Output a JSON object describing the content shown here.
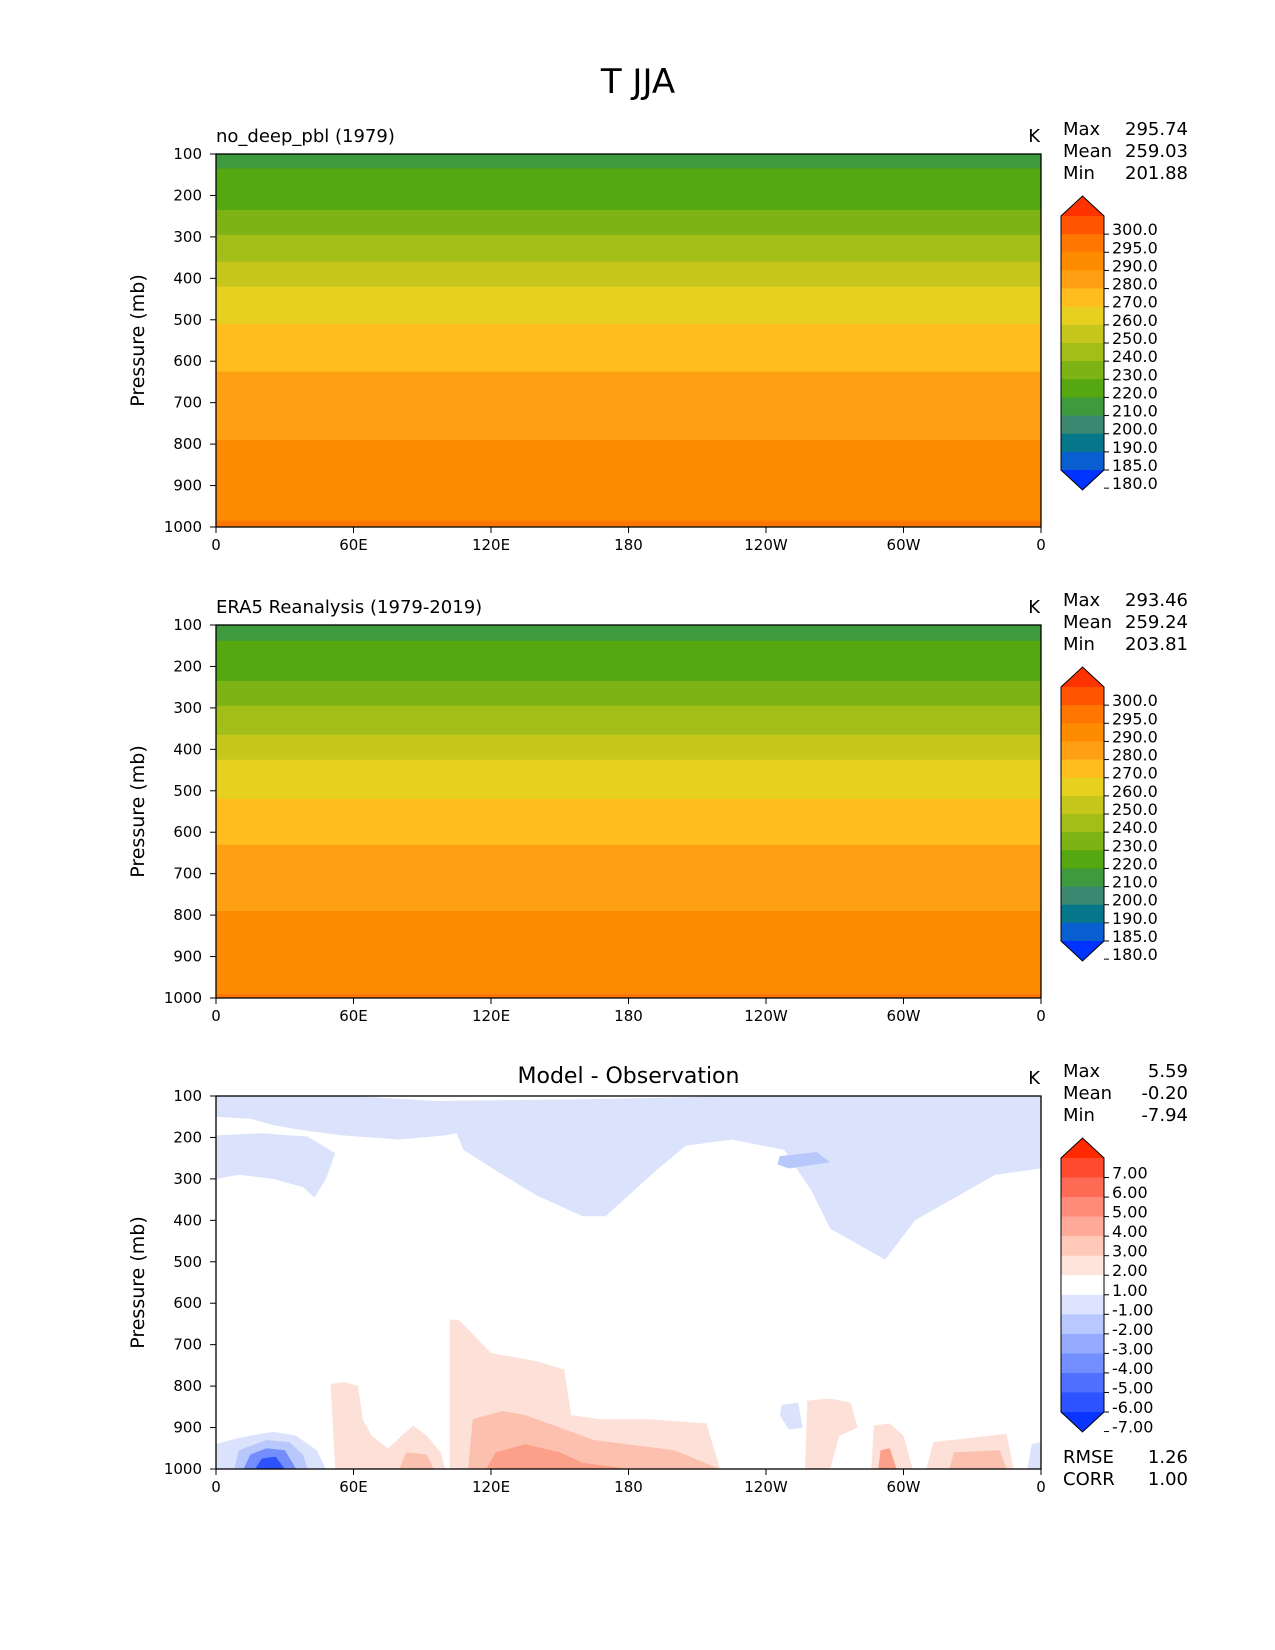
{
  "figure_title": "T JJA",
  "chart_data": [
    {
      "type": "heatmap",
      "title": "no_deep_pbl (1979)",
      "units": "K",
      "ylabel": "Pressure (mb)",
      "xlabel": "",
      "x_ticks": [
        "0",
        "60E",
        "120E",
        "180",
        "120W",
        "60W",
        "0"
      ],
      "y_ticks": [
        "100",
        "200",
        "300",
        "400",
        "500",
        "600",
        "700",
        "800",
        "900",
        "1000"
      ],
      "ylim": [
        1000,
        100
      ],
      "stats": {
        "max": "295.74",
        "mean": "259.03",
        "min": "201.88"
      },
      "colorbar_labels": [
        "300.0",
        "295.0",
        "290.0",
        "280.0",
        "270.0",
        "260.0",
        "250.0",
        "240.0",
        "230.0",
        "220.0",
        "210.0",
        "200.0",
        "190.0",
        "185.0",
        "180.0"
      ],
      "colorbar_colors": [
        "#ff3300",
        "#ff5500",
        "#ff7700",
        "#ff8c00",
        "#ffa014",
        "#ffbe1e",
        "#e8d020",
        "#c6c61c",
        "#a3be18",
        "#7db314",
        "#55a810",
        "#3d9a3d",
        "#3a8870",
        "#06768a",
        "#0a5fd0",
        "#0033ff"
      ],
      "bands": [
        {
          "p": 135,
          "color": "#3d9a3d"
        },
        {
          "p": 235,
          "color": "#55a810"
        },
        {
          "p": 295,
          "color": "#7db314"
        },
        {
          "p": 360,
          "color": "#a3be18"
        },
        {
          "p": 420,
          "color": "#c6c61c"
        },
        {
          "p": 510,
          "color": "#e8d020"
        },
        {
          "p": 625,
          "color": "#ffbe1e"
        },
        {
          "p": 790,
          "color": "#ffa014"
        },
        {
          "p": 985,
          "color": "#ff8c00"
        },
        {
          "p": 1000,
          "color": "#ff7700"
        }
      ]
    },
    {
      "type": "heatmap",
      "title": "ERA5 Reanalysis (1979-2019)",
      "units": "K",
      "ylabel": "Pressure (mb)",
      "xlabel": "",
      "x_ticks": [
        "0",
        "60E",
        "120E",
        "180",
        "120W",
        "60W",
        "0"
      ],
      "y_ticks": [
        "100",
        "200",
        "300",
        "400",
        "500",
        "600",
        "700",
        "800",
        "900",
        "1000"
      ],
      "ylim": [
        1000,
        100
      ],
      "stats": {
        "max": "293.46",
        "mean": "259.24",
        "min": "203.81"
      },
      "colorbar_labels": [
        "300.0",
        "295.0",
        "290.0",
        "280.0",
        "270.0",
        "260.0",
        "250.0",
        "240.0",
        "230.0",
        "220.0",
        "210.0",
        "200.0",
        "190.0",
        "185.0",
        "180.0"
      ],
      "colorbar_colors": [
        "#ff3300",
        "#ff5500",
        "#ff7700",
        "#ff8c00",
        "#ffa014",
        "#ffbe1e",
        "#e8d020",
        "#c6c61c",
        "#a3be18",
        "#7db314",
        "#55a810",
        "#3d9a3d",
        "#3a8870",
        "#06768a",
        "#0a5fd0",
        "#0033ff"
      ],
      "bands": [
        {
          "p": 138,
          "color": "#3d9a3d"
        },
        {
          "p": 235,
          "color": "#55a810"
        },
        {
          "p": 295,
          "color": "#7db314"
        },
        {
          "p": 365,
          "color": "#a3be18"
        },
        {
          "p": 425,
          "color": "#c6c61c"
        },
        {
          "p": 520,
          "color": "#e8d020"
        },
        {
          "p": 630,
          "color": "#ffbe1e"
        },
        {
          "p": 790,
          "color": "#ffa014"
        },
        {
          "p": 990,
          "color": "#ff8c00"
        },
        {
          "p": 1000,
          "color": "#ff7700"
        }
      ]
    },
    {
      "type": "heatmap",
      "title": "Model - Observation",
      "units": "K",
      "ylabel": "Pressure (mb)",
      "xlabel": "",
      "x_ticks": [
        "0",
        "60E",
        "120E",
        "180",
        "120W",
        "60W",
        "0"
      ],
      "y_ticks": [
        "100",
        "200",
        "300",
        "400",
        "500",
        "600",
        "700",
        "800",
        "900",
        "1000"
      ],
      "ylim": [
        1000,
        100
      ],
      "stats": {
        "max": "5.59",
        "mean": "-0.20",
        "min": "-7.94"
      },
      "extra_stats": {
        "rmse": "1.26",
        "corr": "1.00"
      },
      "colorbar_labels": [
        "7.00",
        "6.00",
        "5.00",
        "4.00",
        "3.00",
        "2.00",
        "1.00",
        "-1.00",
        "-2.00",
        "-3.00",
        "-4.00",
        "-5.00",
        "-6.00",
        "-7.00"
      ],
      "colorbar_colors": [
        "#ff2a00",
        "#ff4a30",
        "#ff6a55",
        "#ff8c78",
        "#ffaa98",
        "#ffc8b8",
        "#ffe4dc",
        "#ffffff",
        "#dce4ff",
        "#b9c8ff",
        "#96aaff",
        "#738eff",
        "#5070ff",
        "#2d52ff",
        "#0a34ff"
      ],
      "regions": [
        {
          "color": "#dbe2fb",
          "pts": [
            [
              0,
              100
            ],
            [
              60,
              100
            ],
            [
              95,
              112
            ],
            [
              160,
              108
            ],
            [
              230,
              100
            ],
            [
              360,
              100
            ],
            [
              360,
              275
            ],
            [
              340,
              290
            ],
            [
              305,
              400
            ],
            [
              292,
              495
            ],
            [
              268,
              420
            ],
            [
              260,
              330
            ],
            [
              248,
              230
            ],
            [
              225,
              205
            ],
            [
              205,
              220
            ],
            [
              192,
              280
            ],
            [
              178,
              350
            ],
            [
              170,
              390
            ],
            [
              160,
              390
            ],
            [
              140,
              340
            ],
            [
              125,
              290
            ],
            [
              108,
              230
            ],
            [
              105,
              190
            ],
            [
              100,
              195
            ],
            [
              80,
              205
            ],
            [
              55,
              195
            ],
            [
              35,
              180
            ],
            [
              25,
              170
            ],
            [
              15,
              155
            ],
            [
              0,
              150
            ]
          ]
        },
        {
          "color": "#dbe2fb",
          "pts": [
            [
              0,
              195
            ],
            [
              20,
              190
            ],
            [
              40,
              198
            ],
            [
              52,
              238
            ],
            [
              48,
              300
            ],
            [
              43,
              345
            ],
            [
              38,
              320
            ],
            [
              25,
              300
            ],
            [
              10,
              290
            ],
            [
              0,
              300
            ]
          ]
        },
        {
          "color": "#b9c8fb",
          "pts": [
            [
              246,
              245
            ],
            [
              262,
              235
            ],
            [
              268,
              260
            ],
            [
              250,
              275
            ],
            [
              245,
              265
            ]
          ]
        },
        {
          "color": "#dbe2fb",
          "pts": [
            [
              247,
              845
            ],
            [
              254,
              840
            ],
            [
              256,
              900
            ],
            [
              250,
              905
            ],
            [
              246,
              870
            ]
          ]
        },
        {
          "color": "#fde1d8",
          "pts": [
            [
              102,
              1000
            ],
            [
              102,
              640
            ],
            [
              106,
              640
            ],
            [
              120,
              720
            ],
            [
              140,
              740
            ],
            [
              152,
              760
            ],
            [
              155,
              870
            ],
            [
              168,
              880
            ],
            [
              188,
              880
            ],
            [
              214,
              890
            ],
            [
              220,
              1000
            ]
          ]
        },
        {
          "color": "#fde1d8",
          "pts": [
            [
              52,
              1000
            ],
            [
              50,
              795
            ],
            [
              56,
              790
            ],
            [
              62,
              800
            ],
            [
              64,
              880
            ],
            [
              68,
              920
            ],
            [
              75,
              950
            ],
            [
              86,
              895
            ],
            [
              92,
              920
            ],
            [
              98,
              960
            ],
            [
              100,
              1000
            ]
          ]
        },
        {
          "color": "#fde1d8",
          "pts": [
            [
              257,
              1000
            ],
            [
              258,
              835
            ],
            [
              268,
              830
            ],
            [
              277,
              840
            ],
            [
              280,
              900
            ],
            [
              272,
              920
            ],
            [
              268,
              1000
            ]
          ]
        },
        {
          "color": "#fde1d8",
          "pts": [
            [
              286,
              1000
            ],
            [
              287,
              895
            ],
            [
              294,
              890
            ],
            [
              300,
              920
            ],
            [
              304,
              1000
            ]
          ]
        },
        {
          "color": "#fde1d8",
          "pts": [
            [
              310,
              1000
            ],
            [
              313,
              935
            ],
            [
              345,
              915
            ],
            [
              348,
              1000
            ]
          ]
        },
        {
          "color": "#fcc0ae",
          "pts": [
            [
              110,
              1000
            ],
            [
              112,
              880
            ],
            [
              125,
              860
            ],
            [
              135,
              870
            ],
            [
              150,
              900
            ],
            [
              165,
              930
            ],
            [
              200,
              955
            ],
            [
              220,
              1000
            ]
          ]
        },
        {
          "color": "#fca08a",
          "pts": [
            [
              118,
              1000
            ],
            [
              122,
              960
            ],
            [
              135,
              940
            ],
            [
              150,
              960
            ],
            [
              160,
              985
            ],
            [
              180,
              1000
            ]
          ]
        },
        {
          "color": "#fcc0ae",
          "pts": [
            [
              80,
              1000
            ],
            [
              83,
              960
            ],
            [
              92,
              965
            ],
            [
              95,
              1000
            ]
          ]
        },
        {
          "color": "#fca08a",
          "pts": [
            [
              289,
              1000
            ],
            [
              290,
              955
            ],
            [
              294,
              950
            ],
            [
              297,
              1000
            ]
          ]
        },
        {
          "color": "#fcc0ae",
          "pts": [
            [
              320,
              1000
            ],
            [
              322,
              960
            ],
            [
              342,
              955
            ],
            [
              345,
              1000
            ]
          ]
        },
        {
          "color": "#dbe2fb",
          "pts": [
            [
              0,
              1000
            ],
            [
              0,
              940
            ],
            [
              10,
              925
            ],
            [
              25,
              910
            ],
            [
              35,
              920
            ],
            [
              44,
              955
            ],
            [
              48,
              1000
            ]
          ]
        },
        {
          "color": "#b9c8fb",
          "pts": [
            [
              8,
              1000
            ],
            [
              10,
              955
            ],
            [
              22,
              930
            ],
            [
              32,
              935
            ],
            [
              38,
              965
            ],
            [
              40,
              1000
            ]
          ]
        },
        {
          "color": "#738efb",
          "pts": [
            [
              12,
              1000
            ],
            [
              15,
              965
            ],
            [
              22,
              950
            ],
            [
              30,
              955
            ],
            [
              35,
              1000
            ]
          ]
        },
        {
          "color": "#2d52fb",
          "pts": [
            [
              17,
              1000
            ],
            [
              20,
              975
            ],
            [
              26,
              970
            ],
            [
              30,
              1000
            ]
          ]
        },
        {
          "color": "#dbe2fb",
          "pts": [
            [
              354,
              1000
            ],
            [
              356,
              940
            ],
            [
              360,
              935
            ],
            [
              360,
              1000
            ]
          ]
        }
      ]
    }
  ]
}
